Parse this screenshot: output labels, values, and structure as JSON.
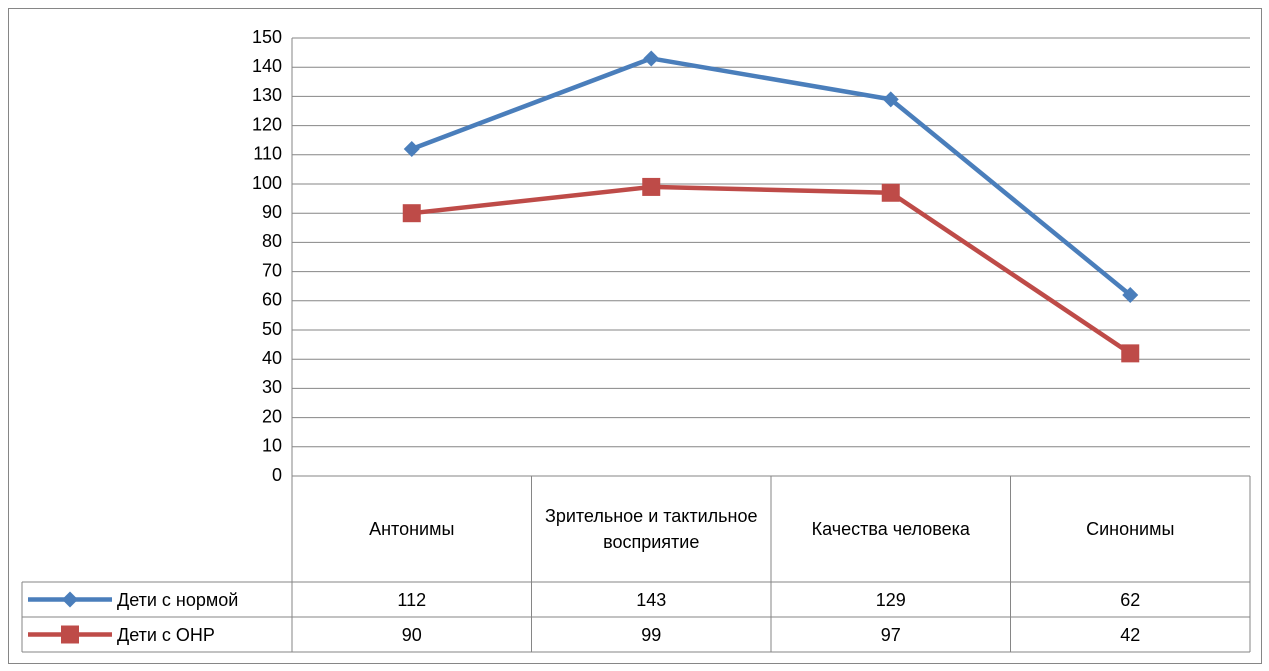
{
  "chart_data": {
    "type": "line",
    "categories": [
      "Антонимы",
      "Зрительное и тактильное восприятие",
      "Качества человека",
      "Синонимы"
    ],
    "series": [
      {
        "name": "Дети с нормой",
        "color": "#4a7ebb",
        "marker": "diamond",
        "values": [
          112,
          143,
          129,
          62
        ]
      },
      {
        "name": "Дети с ОНР",
        "color": "#be4b48",
        "marker": "square",
        "values": [
          90,
          99,
          97,
          42
        ]
      }
    ],
    "ylim": [
      0,
      150
    ],
    "yticks": [
      0,
      10,
      20,
      30,
      40,
      50,
      60,
      70,
      80,
      90,
      100,
      110,
      120,
      130,
      140,
      150
    ],
    "grid": true,
    "data_table": true
  }
}
